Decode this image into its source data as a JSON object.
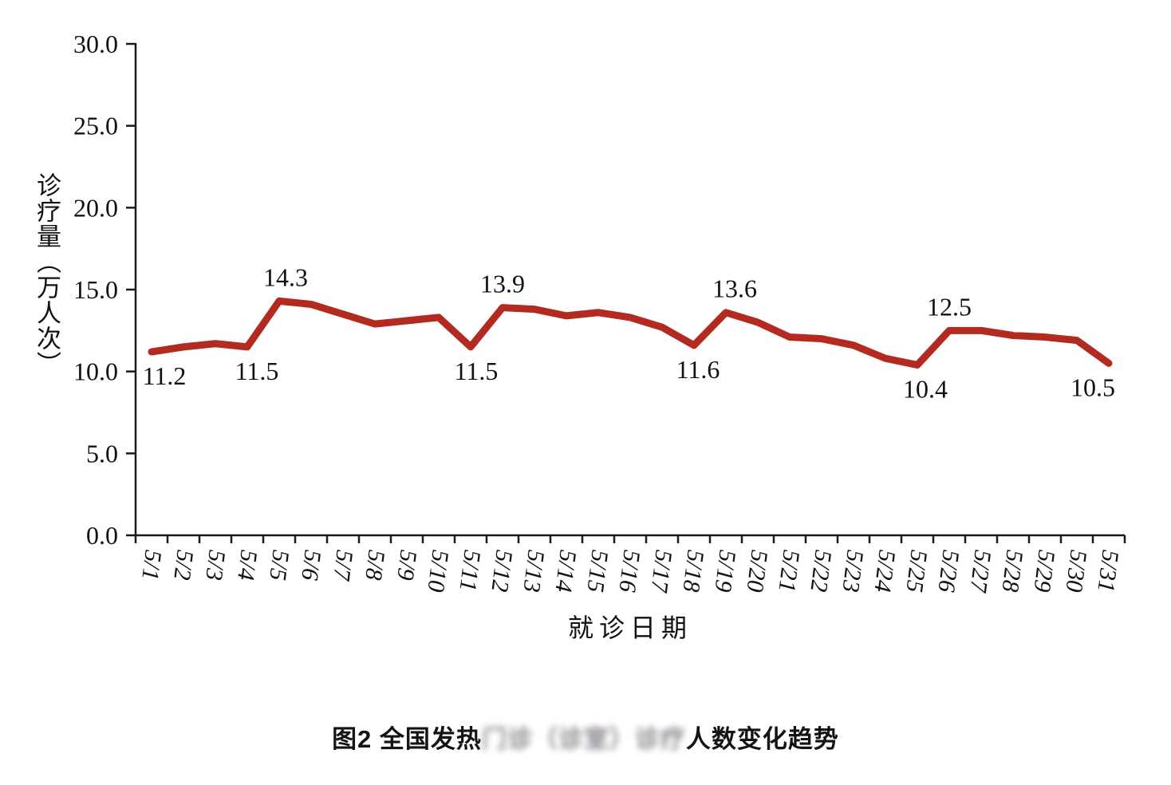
{
  "colors": {
    "line": "#b32a20",
    "axis": "#1a1a1a",
    "text": "#111111"
  },
  "chart_data": {
    "type": "line",
    "title": "",
    "xlabel": "就诊日期",
    "ylabel": "诊疗量（万人次）",
    "x": [
      "5/1",
      "5/2",
      "5/3",
      "5/4",
      "5/5",
      "5/6",
      "5/7",
      "5/8",
      "5/9",
      "5/10",
      "5/11",
      "5/12",
      "5/13",
      "5/14",
      "5/15",
      "5/16",
      "5/17",
      "5/18",
      "5/19",
      "5/20",
      "5/21",
      "5/22",
      "5/23",
      "5/24",
      "5/25",
      "5/26",
      "5/27",
      "5/28",
      "5/29",
      "5/30",
      "5/31"
    ],
    "series": [
      {
        "name": "全国发热门诊（诊室）诊疗人数",
        "values": [
          11.2,
          11.5,
          11.7,
          11.5,
          14.3,
          14.1,
          13.5,
          12.9,
          13.1,
          13.3,
          11.5,
          13.9,
          13.8,
          13.4,
          13.6,
          13.3,
          12.7,
          11.6,
          13.6,
          13.0,
          12.1,
          12.0,
          11.6,
          10.8,
          10.4,
          12.5,
          12.5,
          12.2,
          12.1,
          11.9,
          10.5
        ]
      }
    ],
    "ylim": [
      0,
      30
    ],
    "ytick_step": 5,
    "ytick_labels": [
      "0.0",
      "5.0",
      "10.0",
      "15.0",
      "20.0",
      "25.0",
      "30.0"
    ],
    "grid": false,
    "legend": "none",
    "point_labels": [
      {
        "x": "5/1",
        "index": 0,
        "label": "11.2",
        "position": "below",
        "dx": 16
      },
      {
        "x": "5/4",
        "index": 3,
        "label": "11.5",
        "position": "below",
        "dx": 12
      },
      {
        "x": "5/5",
        "index": 4,
        "label": "14.3",
        "position": "above",
        "dx": 8
      },
      {
        "x": "5/11",
        "index": 10,
        "label": "11.5",
        "position": "below",
        "dx": 7
      },
      {
        "x": "5/12",
        "index": 11,
        "label": "13.9",
        "position": "above",
        "dx": 0
      },
      {
        "x": "5/18",
        "index": 17,
        "label": "11.6",
        "position": "below",
        "dx": 5
      },
      {
        "x": "5/19",
        "index": 18,
        "label": "13.6",
        "position": "above",
        "dx": 11
      },
      {
        "x": "5/25",
        "index": 24,
        "label": "10.4",
        "position": "below",
        "dx": 10
      },
      {
        "x": "5/26",
        "index": 25,
        "label": "12.5",
        "position": "above",
        "dx": 0
      },
      {
        "x": "5/31",
        "index": 30,
        "label": "10.5",
        "position": "below",
        "dx": -20
      }
    ]
  },
  "caption": {
    "prefix": "图2 全国发热",
    "redacted": "门诊（诊室）诊疗",
    "suffix": "人数变化趋势"
  }
}
